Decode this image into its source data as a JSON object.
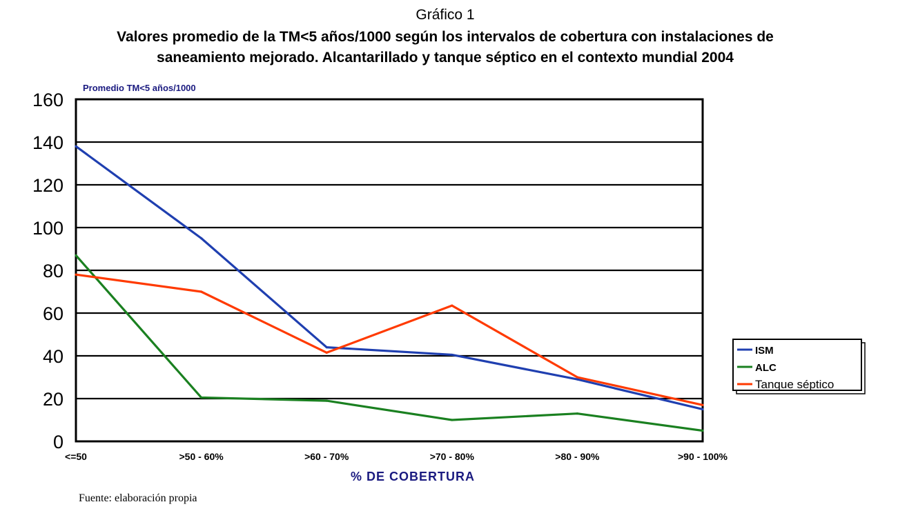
{
  "figure": {
    "label": "Gráfico 1",
    "title_line1": "Valores promedio de la TM<5 años/1000 según los intervalos de cobertura con instalaciones de",
    "title_line2": "saneamiento mejorado. Alcantarillado y tanque séptico en el contexto mundial 2004",
    "source": "Fuente: elaboración propia"
  },
  "chart_data": {
    "type": "line",
    "title": "Valores promedio de la TM<5 años/1000 según los intervalos de cobertura con instalaciones de saneamiento mejorado. Alcantarillado y tanque séptico en el contexto mundial 2004",
    "xlabel": "% DE COBERTURA",
    "ylabel": "Promedio TM<5 años/1000",
    "categories": [
      "<=50",
      ">50 - 60%",
      ">60 - 70%",
      ">70 - 80%",
      ">80 - 90%",
      ">90 - 100%"
    ],
    "ylim": [
      0,
      160
    ],
    "yticks": [
      "0",
      "20",
      "40",
      "60",
      "80",
      "100",
      "120",
      "140",
      "160"
    ],
    "grid": true,
    "legend_position": "right",
    "series": [
      {
        "name": "ISM",
        "color": "#1f3fb0",
        "values": [
          138,
          95,
          44,
          40.5,
          29,
          15
        ]
      },
      {
        "name": "ALC",
        "color": "#1a8020",
        "values": [
          87,
          20.5,
          19,
          10,
          13,
          5
        ]
      },
      {
        "name": "Tanque séptico",
        "color": "#ff3a00",
        "values": [
          78,
          70,
          41.5,
          63.5,
          30,
          17
        ]
      }
    ]
  }
}
